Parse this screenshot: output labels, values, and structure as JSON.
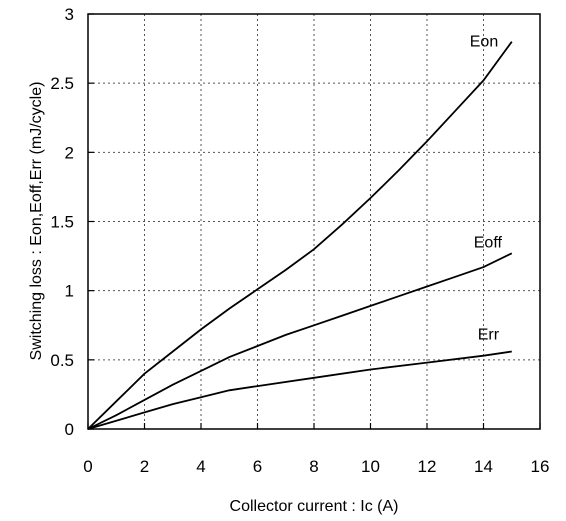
{
  "chart_data": {
    "type": "line",
    "title": "",
    "xlabel": "Collector current : Ic  (A)",
    "ylabel": "Switching loss : Eon,Eoff,Err  (mJ/cycle)",
    "xlim": [
      0,
      16
    ],
    "ylim": [
      0,
      3
    ],
    "x_ticks": [
      0,
      2,
      4,
      6,
      8,
      10,
      12,
      14,
      16
    ],
    "y_ticks": [
      0,
      0.5,
      1,
      1.5,
      2,
      2.5,
      3
    ],
    "x_tick_labels": [
      "0",
      "2",
      "4",
      "6",
      "8",
      "10",
      "12",
      "14",
      "16"
    ],
    "y_tick_labels": [
      "0",
      "0.5",
      "1",
      "1.5",
      "2",
      "2.5",
      "3"
    ],
    "grid": true,
    "legend": "none",
    "series": [
      {
        "name": "Eon",
        "x": [
          0,
          1,
          2,
          3,
          4,
          5,
          6,
          7,
          8,
          9,
          10,
          11,
          12,
          13,
          14,
          15
        ],
        "y": [
          0,
          0.2,
          0.4,
          0.56,
          0.72,
          0.87,
          1.01,
          1.15,
          1.3,
          1.48,
          1.67,
          1.87,
          2.08,
          2.3,
          2.52,
          2.8
        ]
      },
      {
        "name": "Eoff",
        "x": [
          0,
          1,
          2,
          3,
          4,
          5,
          6,
          7,
          8,
          9,
          10,
          11,
          12,
          13,
          14,
          15
        ],
        "y": [
          0,
          0.1,
          0.21,
          0.32,
          0.42,
          0.52,
          0.6,
          0.68,
          0.75,
          0.82,
          0.89,
          0.96,
          1.03,
          1.1,
          1.17,
          1.27
        ]
      },
      {
        "name": "Err",
        "x": [
          0,
          1,
          2,
          3,
          4,
          5,
          6,
          8,
          10,
          12,
          14,
          15
        ],
        "y": [
          0,
          0.06,
          0.12,
          0.18,
          0.23,
          0.28,
          0.31,
          0.37,
          0.43,
          0.48,
          0.53,
          0.56
        ]
      }
    ]
  }
}
